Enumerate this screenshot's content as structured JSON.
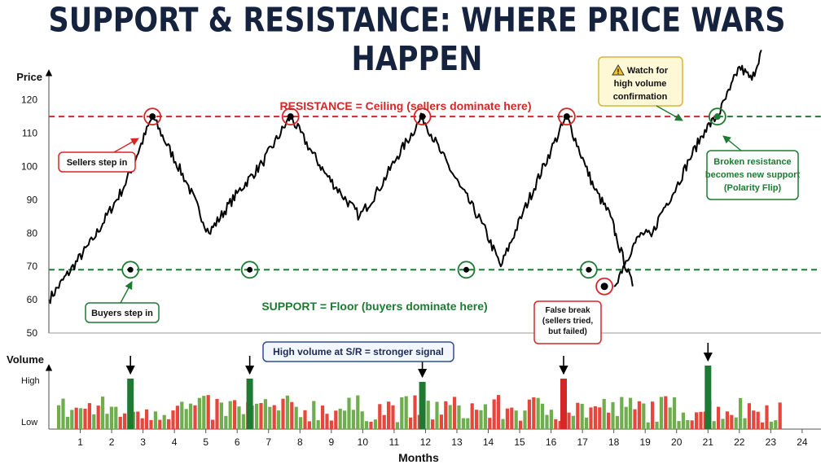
{
  "title": "SUPPORT & RESISTANCE: WHERE PRICE WARS HAPPEN",
  "colors": {
    "resistance": "#d62728",
    "support": "#1e7a32",
    "price_line": "#000000",
    "vol_up": "#6fae4f",
    "vol_up_strong": "#1e7a32",
    "vol_down": "#e8453c",
    "vol_down_strong": "#d62728",
    "note_fill": "#fff8d6",
    "note_border": "#d9b43c"
  },
  "chart_data": {
    "type": "line",
    "xlabel": "Months",
    "ylabel": "Price",
    "xlim": [
      0,
      24.6
    ],
    "ylim": [
      50,
      128
    ],
    "x_ticks": [
      1,
      2,
      3,
      4,
      5,
      6,
      7,
      8,
      9,
      10,
      11,
      12,
      13,
      14,
      15,
      16,
      17,
      18,
      19,
      20,
      21,
      22,
      23,
      24
    ],
    "y_ticks": [
      50,
      60,
      70,
      80,
      90,
      100,
      110,
      120
    ],
    "grid": false,
    "resistance_level": 115,
    "support_level": 69,
    "series": [
      {
        "x": [
          0,
          1.4,
          2.4,
          3.3,
          4.4,
          5.1,
          6.0,
          6.8,
          7.7,
          8.4,
          8.8,
          9.3,
          9.9,
          10.5,
          11.1,
          11.9,
          12.5,
          13.1,
          13.8,
          14.4,
          15.1,
          16.0,
          16.5,
          17.1,
          17.4,
          17.9,
          18.1,
          18.6
        ],
        "y": [
          60,
          78,
          94,
          115,
          95,
          80,
          92,
          101,
          115,
          104,
          98,
          92,
          85,
          93,
          103,
          115,
          104,
          94,
          83,
          70,
          86,
          105,
          115,
          100,
          93,
          85,
          78,
          64
        ]
      },
      {
        "x": [
          18.0,
          18.3,
          18.6,
          18.9,
          19.2,
          19.5,
          20.0,
          20.4,
          20.9,
          21.3,
          21.7,
          22.0,
          22.4,
          22.7
        ],
        "y": [
          64,
          70,
          76,
          80,
          79,
          86,
          94,
          102,
          111,
          115,
          123,
          130,
          126,
          135
        ]
      }
    ],
    "annotations": {
      "resistance": "RESISTANCE = Ceiling (sellers dominate here)",
      "support": "SUPPORT = Floor (buyers dominate here)",
      "sellers": "Sellers step in",
      "buyers": "Buyers step in",
      "false_break": [
        "False break",
        "(sellers tried,",
        "but failed)"
      ],
      "watch": [
        "Watch for",
        "high volume",
        "confirmation"
      ],
      "broken": [
        "Broken resistance",
        "becomes new support",
        "(Polarity Flip)"
      ],
      "volume_note": "High volume at S/R = stronger signal"
    },
    "resistance_touches_x": [
      3.3,
      7.7,
      11.9,
      16.5,
      21.3
    ],
    "support_touches_x": [
      2.6,
      6.4,
      13.3,
      17.2
    ],
    "false_break_x": 17.7,
    "volume": {
      "ylabel": "Volume",
      "y_labels": [
        "High",
        "Low"
      ],
      "spikes_x": [
        2.6,
        6.4,
        11.9,
        16.4,
        21.0
      ]
    }
  }
}
